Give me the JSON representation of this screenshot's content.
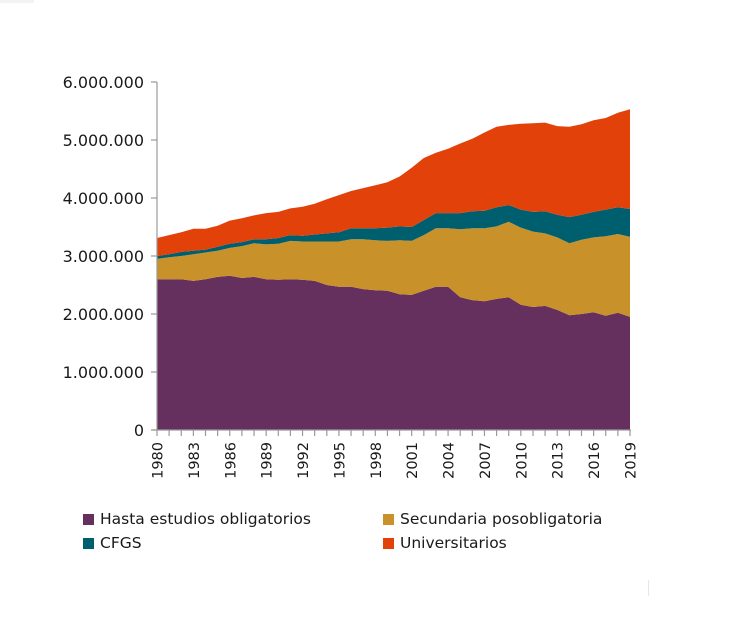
{
  "chart_data": {
    "type": "area",
    "stacked": true,
    "title": "",
    "xlabel": "",
    "ylabel": "",
    "ylim": [
      0,
      6000000
    ],
    "yticks": [
      0,
      1000000,
      2000000,
      3000000,
      4000000,
      5000000,
      6000000
    ],
    "ytick_labels": [
      "0",
      "1.000.000",
      "2.000.000",
      "3.000.000",
      "4.000.000",
      "5.000.000",
      "6.000.000"
    ],
    "x": [
      1980,
      1981,
      1982,
      1983,
      1984,
      1985,
      1986,
      1987,
      1988,
      1989,
      1990,
      1991,
      1992,
      1993,
      1994,
      1995,
      1996,
      1997,
      1998,
      1999,
      2000,
      2001,
      2002,
      2003,
      2004,
      2005,
      2006,
      2007,
      2008,
      2009,
      2010,
      2011,
      2012,
      2013,
      2014,
      2015,
      2016,
      2017,
      2018,
      2019
    ],
    "xtick_labels": [
      "1980",
      "1983",
      "1986",
      "1989",
      "1992",
      "1995",
      "1998",
      "2001",
      "2004",
      "2007",
      "2010",
      "2013",
      "2016",
      "2019"
    ],
    "grid": false,
    "legend_position": "bottom",
    "series": [
      {
        "name": "Hasta estudios obligatorios",
        "color": "#652F5E",
        "values": [
          2600000,
          2600000,
          2600000,
          2570000,
          2600000,
          2640000,
          2660000,
          2620000,
          2640000,
          2600000,
          2590000,
          2600000,
          2590000,
          2570000,
          2500000,
          2470000,
          2470000,
          2430000,
          2410000,
          2400000,
          2340000,
          2330000,
          2400000,
          2470000,
          2470000,
          2290000,
          2240000,
          2220000,
          2260000,
          2290000,
          2160000,
          2120000,
          2140000,
          2070000,
          1980000,
          2000000,
          2030000,
          1970000,
          2020000,
          1950000
        ]
      },
      {
        "name": "Secundaria posobligatoria",
        "color": "#C99129",
        "values": [
          350000,
          380000,
          400000,
          460000,
          460000,
          450000,
          480000,
          550000,
          580000,
          600000,
          620000,
          660000,
          660000,
          680000,
          750000,
          780000,
          820000,
          860000,
          860000,
          860000,
          930000,
          930000,
          960000,
          1010000,
          1010000,
          1170000,
          1240000,
          1260000,
          1250000,
          1300000,
          1330000,
          1300000,
          1250000,
          1250000,
          1240000,
          1280000,
          1290000,
          1370000,
          1360000,
          1380000
        ]
      },
      {
        "name": "CFGS",
        "color": "#005F6E",
        "values": [
          50000,
          50000,
          70000,
          60000,
          50000,
          70000,
          70000,
          70000,
          70000,
          90000,
          100000,
          100000,
          100000,
          120000,
          140000,
          160000,
          190000,
          190000,
          210000,
          230000,
          240000,
          240000,
          260000,
          260000,
          260000,
          280000,
          290000,
          300000,
          330000,
          290000,
          310000,
          340000,
          380000,
          390000,
          450000,
          430000,
          440000,
          460000,
          460000,
          480000
        ]
      },
      {
        "name": "Universitarios",
        "color": "#E2410A",
        "values": [
          310000,
          330000,
          340000,
          380000,
          360000,
          360000,
          400000,
          410000,
          410000,
          450000,
          450000,
          460000,
          500000,
          530000,
          590000,
          640000,
          640000,
          690000,
          740000,
          780000,
          860000,
          1020000,
          1070000,
          1040000,
          1110000,
          1200000,
          1250000,
          1350000,
          1390000,
          1380000,
          1480000,
          1530000,
          1530000,
          1530000,
          1560000,
          1560000,
          1580000,
          1580000,
          1630000,
          1720000
        ]
      }
    ]
  },
  "legend": {
    "items": [
      {
        "label": "Hasta estudios obligatorios",
        "color": "#652F5E"
      },
      {
        "label": "Secundaria posobligatoria",
        "color": "#C99129"
      },
      {
        "label": "CFGS",
        "color": "#005F6E"
      },
      {
        "label": "Universitarios",
        "color": "#E2410A"
      }
    ]
  }
}
